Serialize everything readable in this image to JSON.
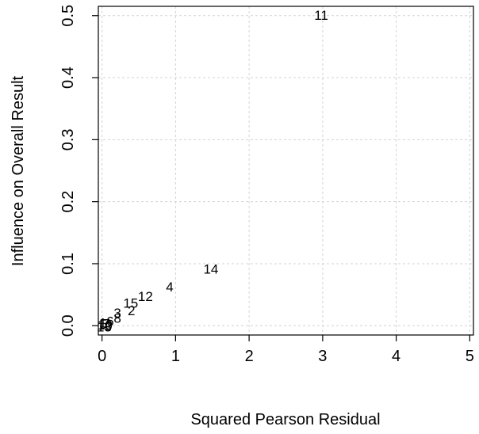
{
  "chart_data": {
    "type": "scatter",
    "title": "",
    "xlabel": "Squared Pearson Residual",
    "ylabel": "Influence on Overall Result",
    "xlim": [
      -0.05,
      5.05
    ],
    "ylim": [
      -0.015,
      0.515
    ],
    "x_ticks": [
      0,
      1,
      2,
      3,
      4,
      5
    ],
    "y_ticks": [
      0.0,
      0.1,
      0.2,
      0.3,
      0.4,
      0.5
    ],
    "x_tick_labels": [
      "0",
      "1",
      "2",
      "3",
      "4",
      "5"
    ],
    "y_tick_labels": [
      "0.0",
      "0.1",
      "0.2",
      "0.3",
      "0.4",
      "0.5"
    ],
    "grid": true,
    "marker": "text-labels",
    "points": [
      {
        "label": "11",
        "x": 2.98,
        "y": 0.5
      },
      {
        "label": "14",
        "x": 1.48,
        "y": 0.091
      },
      {
        "label": "4",
        "x": 0.92,
        "y": 0.062
      },
      {
        "label": "12",
        "x": 0.59,
        "y": 0.047
      },
      {
        "label": "15",
        "x": 0.39,
        "y": 0.036
      },
      {
        "label": "2",
        "x": 0.4,
        "y": 0.024
      },
      {
        "label": "3",
        "x": 0.21,
        "y": 0.02
      },
      {
        "label": "8",
        "x": 0.21,
        "y": 0.012
      },
      {
        "label": "6",
        "x": 0.11,
        "y": 0.007
      },
      {
        "label": "10",
        "x": 0.04,
        "y": 0.001
      },
      {
        "label": "9",
        "x": 0.09,
        "y": -0.001
      },
      {
        "label": "1",
        "x": 0.01,
        "y": 0.004
      },
      {
        "label": "5",
        "x": 0.02,
        "y": 0.002
      },
      {
        "label": "7",
        "x": 0.06,
        "y": 0.003
      },
      {
        "label": "13",
        "x": 0.03,
        "y": -0.002
      }
    ]
  }
}
